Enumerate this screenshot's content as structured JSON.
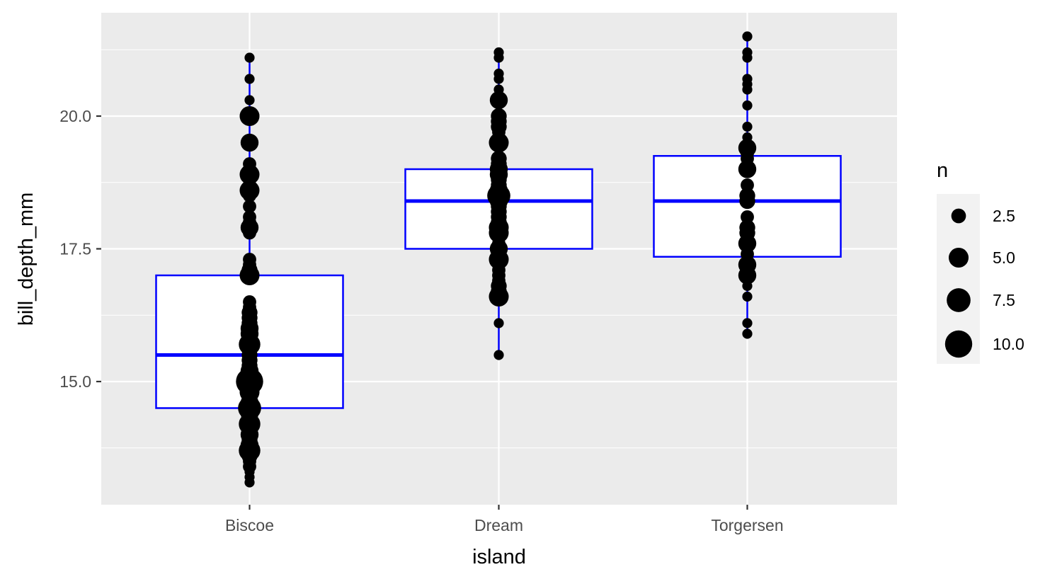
{
  "chart_data": {
    "type": "boxplot",
    "xlabel": "island",
    "ylabel": "bill_depth_mm",
    "categories": [
      "Biscoe",
      "Dream",
      "Torgersen"
    ],
    "ylim": [
      12.8,
      22.0
    ],
    "y_ticks": [
      15.0,
      17.5,
      20.0
    ],
    "y_tick_labels": [
      "15.0",
      "17.5",
      "20.0"
    ],
    "grid": true,
    "colors": {
      "box": "#0000ff",
      "point": "#000000",
      "panel": "#ebebeb",
      "grid": "#ffffff"
    },
    "boxes": [
      {
        "category": "Biscoe",
        "min": 13.1,
        "q1": 14.5,
        "median": 15.5,
        "q3": 17.0,
        "max": 21.1
      },
      {
        "category": "Dream",
        "min": 15.5,
        "q1": 17.5,
        "median": 18.4,
        "q3": 19.0,
        "max": 21.2
      },
      {
        "category": "Torgersen",
        "min": 15.9,
        "q1": 17.35,
        "median": 18.4,
        "q3": 19.25,
        "max": 21.5
      }
    ],
    "points": [
      {
        "category": "Biscoe",
        "values": [
          [
            13.1,
            1
          ],
          [
            13.2,
            1
          ],
          [
            13.3,
            1
          ],
          [
            13.4,
            2
          ],
          [
            13.5,
            2
          ],
          [
            13.6,
            3
          ],
          [
            13.7,
            6
          ],
          [
            13.8,
            4
          ],
          [
            13.9,
            3
          ],
          [
            14.0,
            4
          ],
          [
            14.1,
            3
          ],
          [
            14.2,
            6
          ],
          [
            14.3,
            3
          ],
          [
            14.4,
            4
          ],
          [
            14.5,
            7
          ],
          [
            14.6,
            4
          ],
          [
            14.7,
            3
          ],
          [
            14.8,
            5
          ],
          [
            14.9,
            4
          ],
          [
            15.0,
            10
          ],
          [
            15.1,
            4
          ],
          [
            15.2,
            4
          ],
          [
            15.3,
            3
          ],
          [
            15.4,
            3
          ],
          [
            15.5,
            3
          ],
          [
            15.6,
            3
          ],
          [
            15.7,
            6
          ],
          [
            15.8,
            3
          ],
          [
            15.9,
            4
          ],
          [
            16.0,
            4
          ],
          [
            16.1,
            3
          ],
          [
            16.2,
            3
          ],
          [
            16.3,
            3
          ],
          [
            16.4,
            2
          ],
          [
            16.5,
            2
          ],
          [
            17.0,
            5
          ],
          [
            17.1,
            3
          ],
          [
            17.2,
            2
          ],
          [
            17.3,
            2
          ],
          [
            17.8,
            2
          ],
          [
            17.9,
            4
          ],
          [
            18.0,
            2
          ],
          [
            18.1,
            2
          ],
          [
            18.3,
            2
          ],
          [
            18.5,
            2
          ],
          [
            18.6,
            5
          ],
          [
            18.7,
            2
          ],
          [
            18.8,
            2
          ],
          [
            18.9,
            5
          ],
          [
            19.0,
            2
          ],
          [
            19.1,
            2
          ],
          [
            19.5,
            4
          ],
          [
            20.0,
            5
          ],
          [
            20.3,
            1
          ],
          [
            20.7,
            1
          ],
          [
            21.1,
            1
          ]
        ]
      },
      {
        "category": "Dream",
        "values": [
          [
            15.5,
            1
          ],
          [
            16.1,
            1
          ],
          [
            16.6,
            5
          ],
          [
            16.7,
            3
          ],
          [
            16.8,
            3
          ],
          [
            16.9,
            2
          ],
          [
            17.0,
            2
          ],
          [
            17.1,
            2
          ],
          [
            17.2,
            2
          ],
          [
            17.3,
            5
          ],
          [
            17.4,
            2
          ],
          [
            17.5,
            4
          ],
          [
            17.6,
            2
          ],
          [
            17.7,
            2
          ],
          [
            17.8,
            5
          ],
          [
            17.9,
            5
          ],
          [
            18.0,
            3
          ],
          [
            18.1,
            3
          ],
          [
            18.2,
            3
          ],
          [
            18.3,
            3
          ],
          [
            18.4,
            4
          ],
          [
            18.5,
            7
          ],
          [
            18.6,
            4
          ],
          [
            18.7,
            3
          ],
          [
            18.8,
            3
          ],
          [
            18.9,
            4
          ],
          [
            19.0,
            4
          ],
          [
            19.1,
            3
          ],
          [
            19.2,
            3
          ],
          [
            19.5,
            5
          ],
          [
            19.6,
            2
          ],
          [
            19.7,
            2
          ],
          [
            19.8,
            3
          ],
          [
            19.9,
            3
          ],
          [
            20.0,
            3
          ],
          [
            20.3,
            4
          ],
          [
            20.5,
            1
          ],
          [
            20.7,
            1
          ],
          [
            20.8,
            1
          ],
          [
            21.1,
            1
          ],
          [
            21.2,
            1
          ]
        ]
      },
      {
        "category": "Torgersen",
        "values": [
          [
            15.9,
            1
          ],
          [
            16.1,
            1
          ],
          [
            16.6,
            1
          ],
          [
            16.8,
            1
          ],
          [
            17.0,
            4
          ],
          [
            17.1,
            2
          ],
          [
            17.2,
            4
          ],
          [
            17.4,
            2
          ],
          [
            17.6,
            4
          ],
          [
            17.8,
            3
          ],
          [
            17.9,
            3
          ],
          [
            18.1,
            2
          ],
          [
            18.4,
            3
          ],
          [
            18.5,
            3
          ],
          [
            18.7,
            2
          ],
          [
            19.0,
            4
          ],
          [
            19.2,
            2
          ],
          [
            19.3,
            2
          ],
          [
            19.4,
            4
          ],
          [
            19.6,
            1
          ],
          [
            19.8,
            1
          ],
          [
            20.2,
            1
          ],
          [
            20.5,
            1
          ],
          [
            20.6,
            1
          ],
          [
            20.7,
            1
          ],
          [
            21.1,
            1
          ],
          [
            21.2,
            1
          ],
          [
            21.5,
            1
          ]
        ]
      }
    ],
    "legend": {
      "title": "n",
      "position": "right",
      "entries": [
        {
          "label": "2.5",
          "value": 2.5
        },
        {
          "label": "5.0",
          "value": 5.0
        },
        {
          "label": "7.5",
          "value": 7.5
        },
        {
          "label": "10.0",
          "value": 10.0
        }
      ]
    }
  }
}
